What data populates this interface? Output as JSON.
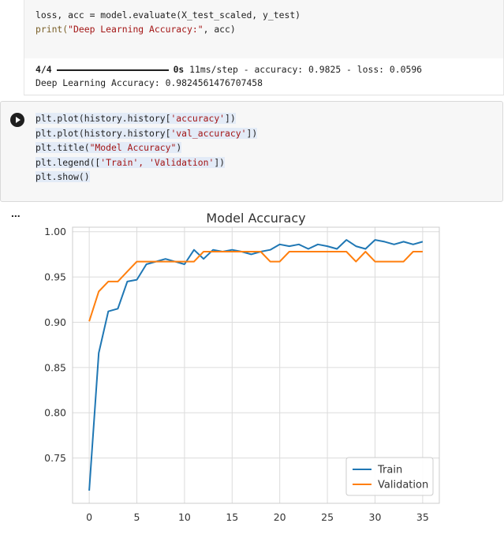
{
  "cell1": {
    "code": [
      "loss, acc = model.evaluate(X_test_scaled, y_test)"
    ],
    "print_fn": "print(",
    "print_str": "\"Deep Learning Accuracy:\"",
    "print_rest": ", acc)",
    "output_progress": "4/4",
    "output_time": "0s",
    "output_metrics": "11ms/step - accuracy: 0.9825 - loss: 0.0596",
    "output_result": "Deep Learning Accuracy: 0.9824561476707458"
  },
  "cell2": {
    "lines": [
      {
        "pre": "plt.plot(history.history[",
        "str": "'accuracy'",
        "post": "])"
      },
      {
        "pre": "plt.plot(history.history[",
        "str": "'val_accuracy'",
        "post": "])"
      },
      {
        "pre": "plt.title(",
        "str": "\"Model Accuracy\"",
        "post": ")"
      },
      {
        "pre": "plt.legend([",
        "str": "'Train', 'Validation'",
        "post": "])"
      },
      {
        "pre": "plt.show()",
        "str": "",
        "post": ""
      }
    ],
    "output_menu": "..."
  },
  "chart_data": {
    "type": "line",
    "title": "Model Accuracy",
    "xlabel": "",
    "ylabel": "",
    "xlim": [
      -1.75,
      36.75
    ],
    "ylim": [
      0.7,
      1.005
    ],
    "xticks": [
      0,
      5,
      10,
      15,
      20,
      25,
      30,
      35
    ],
    "yticks": [
      0.75,
      0.8,
      0.85,
      0.9,
      0.95,
      1.0
    ],
    "ytick_labels": [
      "0.75",
      "0.80",
      "0.85",
      "0.90",
      "0.95",
      "1.00"
    ],
    "grid": true,
    "legend_position": "lower-right",
    "series": [
      {
        "name": "Train",
        "color": "#1f77b4",
        "x": [
          0,
          1,
          2,
          3,
          4,
          5,
          6,
          7,
          8,
          9,
          10,
          11,
          12,
          13,
          14,
          15,
          16,
          17,
          18,
          19,
          20,
          21,
          22,
          23,
          24,
          25,
          26,
          27,
          28,
          29,
          30,
          31,
          32,
          33,
          34,
          35
        ],
        "values": [
          0.714,
          0.866,
          0.912,
          0.915,
          0.945,
          0.947,
          0.964,
          0.967,
          0.97,
          0.967,
          0.964,
          0.98,
          0.97,
          0.98,
          0.978,
          0.98,
          0.978,
          0.975,
          0.978,
          0.98,
          0.986,
          0.984,
          0.986,
          0.981,
          0.986,
          0.984,
          0.981,
          0.991,
          0.984,
          0.981,
          0.991,
          0.989,
          0.986,
          0.989,
          0.986,
          0.989
        ]
      },
      {
        "name": "Validation",
        "color": "#ff7f0e",
        "x": [
          0,
          1,
          2,
          3,
          4,
          5,
          6,
          7,
          8,
          9,
          10,
          11,
          12,
          13,
          14,
          15,
          16,
          17,
          18,
          19,
          20,
          21,
          22,
          23,
          24,
          25,
          26,
          27,
          28,
          29,
          30,
          31,
          32,
          33,
          34,
          35
        ],
        "values": [
          0.901,
          0.934,
          0.945,
          0.945,
          0.956,
          0.967,
          0.967,
          0.967,
          0.967,
          0.967,
          0.967,
          0.967,
          0.978,
          0.978,
          0.978,
          0.978,
          0.978,
          0.978,
          0.978,
          0.967,
          0.967,
          0.978,
          0.978,
          0.978,
          0.978,
          0.978,
          0.978,
          0.978,
          0.967,
          0.978,
          0.967,
          0.967,
          0.967,
          0.967,
          0.978,
          0.978
        ]
      }
    ]
  }
}
